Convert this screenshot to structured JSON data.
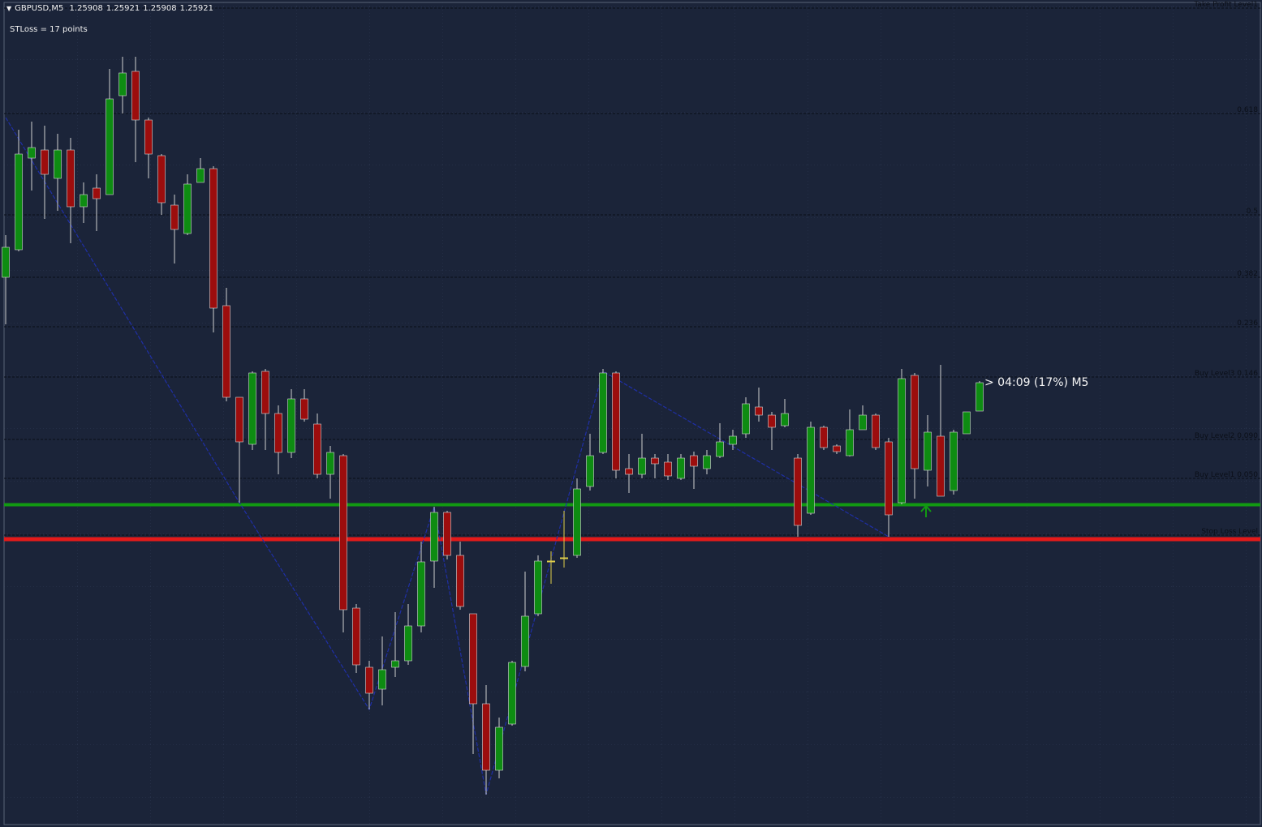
{
  "chart_data": {
    "type": "candlestick",
    "title": "GBPUSD,M5",
    "header_values": [
      1.25908,
      1.25921,
      1.25908,
      1.25921
    ],
    "annotation": "STLoss = 17 points",
    "timer": "> 04:09 (17%) M5",
    "ylim": [
      1.25702,
      1.2611
    ],
    "up_color": "#0e8c12",
    "down_color": "#9c0d0d",
    "doji_color": "#e0cf4a",
    "wick_color": "#cfcfcf",
    "open": [
      1.259732,
      1.259868,
      1.26032,
      1.26036,
      1.26022,
      1.26036,
      1.26008,
      1.260172,
      1.26014,
      1.260628,
      1.260748,
      1.260508,
      1.260332,
      1.260088,
      1.259948,
      1.2602,
      1.260268,
      1.259592,
      1.25914,
      1.258908,
      1.259268,
      1.25906,
      1.258868,
      1.259132,
      1.259008,
      1.25876,
      1.258852,
      1.2581,
      1.257808,
      1.2577,
      1.257808,
      1.25784,
      1.258012,
      1.258332,
      1.258572,
      1.25836,
      1.258072,
      1.257628,
      1.2573,
      1.257528,
      1.257812,
      1.258072,
      1.258332,
      1.258348,
      1.25836,
      1.2587,
      1.258868,
      1.25926,
      1.258788,
      1.25876,
      1.25884,
      1.25882,
      1.25874,
      1.258852,
      1.258788,
      1.258848,
      1.258908,
      1.25896,
      1.259092,
      1.259052,
      1.259,
      1.25884,
      1.258568,
      1.258992,
      1.2589,
      1.258852,
      1.25898,
      1.259052,
      1.25892,
      1.25862,
      1.259248,
      1.25878,
      1.258948,
      1.25868,
      1.25896,
      1.259072
    ],
    "high": [
      1.25994,
      1.26046,
      1.2605,
      1.26048,
      1.26044,
      1.26042,
      1.2602,
      1.26024,
      1.26076,
      1.26082,
      1.26082,
      1.26052,
      1.26034,
      1.26014,
      1.26024,
      1.26032,
      1.26028,
      1.25968,
      1.25914,
      1.259268,
      1.25928,
      1.2591,
      1.25918,
      1.25918,
      1.25906,
      1.2589,
      1.25886,
      1.25812,
      1.25784,
      1.25796,
      1.25808,
      1.25812,
      1.258428,
      1.2586,
      1.25858,
      1.258428,
      1.258072,
      1.25772,
      1.25756,
      1.25784,
      1.25828,
      1.25836,
      1.25838,
      1.25858,
      1.25874,
      1.25896,
      1.25928,
      1.259268,
      1.25886,
      1.25896,
      1.25886,
      1.25886,
      1.25886,
      1.258872,
      1.25888,
      1.259012,
      1.25898,
      1.25914,
      1.259188,
      1.259068,
      1.259132,
      1.25886,
      1.25902,
      1.259,
      1.258908,
      1.25908,
      1.2591,
      1.25906,
      1.25894,
      1.25928,
      1.25926,
      1.259052,
      1.2593,
      1.25898,
      1.259068,
      1.25922
    ],
    "low": [
      1.2595,
      1.25986,
      1.26016,
      1.26002,
      1.26006,
      1.2599,
      1.26,
      1.25996,
      1.26014,
      1.26054,
      1.2603,
      1.26022,
      1.26004,
      1.2598,
      1.25994,
      1.2602,
      1.25946,
      1.25912,
      1.25862,
      1.25888,
      1.25888,
      1.25876,
      1.25884,
      1.25902,
      1.25874,
      1.25864,
      1.25798,
      1.25778,
      1.2576,
      1.25762,
      1.25776,
      1.25782,
      1.25798,
      1.2582,
      1.25834,
      1.258092,
      1.25738,
      1.25718,
      1.25726,
      1.25752,
      1.257788,
      1.25806,
      1.25822,
      1.2583,
      1.258348,
      1.25868,
      1.25886,
      1.25874,
      1.258668,
      1.25874,
      1.25874,
      1.258732,
      1.258732,
      1.258688,
      1.25876,
      1.25884,
      1.25888,
      1.25894,
      1.25902,
      1.25888,
      1.258992,
      1.258452,
      1.25856,
      1.25888,
      1.25886,
      1.258848,
      1.25898,
      1.25888,
      1.258452,
      1.258612,
      1.25864,
      1.2587,
      1.258652,
      1.25866,
      1.25896,
      1.259072
    ],
    "close": [
      1.25988,
      1.26034,
      1.260372,
      1.26024,
      1.26036,
      1.26008,
      1.26014,
      1.26012,
      1.260612,
      1.26074,
      1.260508,
      1.26034,
      1.2601,
      1.259968,
      1.260192,
      1.260268,
      1.25958,
      1.25914,
      1.25892,
      1.25926,
      1.25906,
      1.258868,
      1.259132,
      1.259032,
      1.25876,
      1.258868,
      1.258092,
      1.25782,
      1.25768,
      1.257796,
      1.25784,
      1.258012,
      1.258328,
      1.258572,
      1.25836,
      1.258108,
      1.257628,
      1.2573,
      1.257512,
      1.257832,
      1.25806,
      1.258332,
      1.258332,
      1.258348,
      1.258688,
      1.258852,
      1.25926,
      1.25878,
      1.25876,
      1.25884,
      1.258812,
      1.258752,
      1.25884,
      1.2588,
      1.258852,
      1.25892,
      1.258948,
      1.259108,
      1.259052,
      1.258992,
      1.25906,
      1.258508,
      1.258992,
      1.258892,
      1.258872,
      1.25898,
      1.259052,
      1.258892,
      1.25856,
      1.259232,
      1.258788,
      1.258968,
      1.258652,
      1.258968,
      1.259068,
      1.259212
    ],
    "zigzag": {
      "color": "#1f2fa6",
      "x": [
        0,
        18,
        28,
        33,
        37,
        46,
        68
      ],
      "values": [
        1.26052,
        1.25862,
        1.2576,
        1.2586,
        1.25718,
        1.259268,
        1.258452
      ]
    },
    "entry_line": {
      "value": 1.25861,
      "color": "#129a12"
    },
    "stop_line": {
      "value": 1.25844,
      "color": "#e31a1a"
    },
    "level_color": "#0a0e17",
    "levels": [
      {
        "label": "Take Profit Level1",
        "value": 1.26106
      },
      {
        "label": "0.618",
        "value": 1.26054
      },
      {
        "label": "0.5",
        "value": 1.26004
      },
      {
        "label": "0.382",
        "value": 1.259732
      },
      {
        "label": "0.236",
        "value": 1.259488
      },
      {
        "label": "Buy Level3 0.146",
        "value": 1.25924
      },
      {
        "label": "Buy Level2 0.090",
        "value": 1.258932
      },
      {
        "label": "Buy Level1 0.050",
        "value": 1.25874
      },
      {
        "label": "Stop Loss Level",
        "value": 1.25846
      }
    ]
  }
}
